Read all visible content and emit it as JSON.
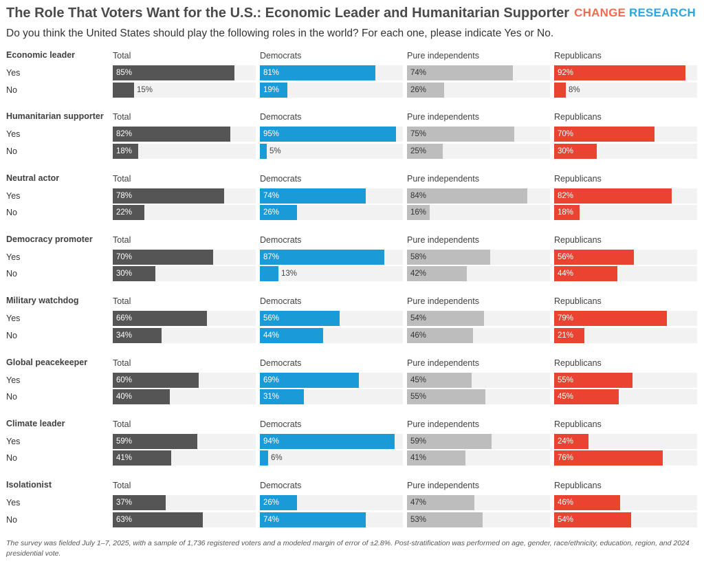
{
  "header": {
    "title": "The Role That Voters Want for the U.S.: Economic Leader and Humanitarian Supporter",
    "subtitle": "Do you think the United States should play the following roles in the world? For each one, please indicate Yes or No.",
    "logo_part1": "CHANGE",
    "logo_part2": "RESEARCH"
  },
  "colors": {
    "Total": "#555555",
    "Democrats": "#1a9bd7",
    "Pure independents": "#bdbdbd",
    "Republicans": "#ea4331",
    "logo_part1": "#f26b4e",
    "logo_part2": "#2ba6de",
    "track": "#f2f2f2"
  },
  "chart_data": {
    "type": "bar",
    "orientation": "horizontal",
    "xlim": [
      0,
      100
    ],
    "unit": "%",
    "groups": [
      "Total",
      "Democrats",
      "Pure independents",
      "Republicans"
    ],
    "responses": [
      "Yes",
      "No"
    ],
    "roles": [
      {
        "name": "Economic leader",
        "Total": [
          85,
          15
        ],
        "Democrats": [
          81,
          19
        ],
        "Pure independents": [
          74,
          26
        ],
        "Republicans": [
          92,
          8
        ]
      },
      {
        "name": "Humanitarian supporter",
        "Total": [
          82,
          18
        ],
        "Democrats": [
          95,
          5
        ],
        "Pure independents": [
          75,
          25
        ],
        "Republicans": [
          70,
          30
        ]
      },
      {
        "name": "Neutral actor",
        "Total": [
          78,
          22
        ],
        "Democrats": [
          74,
          26
        ],
        "Pure independents": [
          84,
          16
        ],
        "Republicans": [
          82,
          18
        ]
      },
      {
        "name": "Democracy promoter",
        "Total": [
          70,
          30
        ],
        "Democrats": [
          87,
          13
        ],
        "Pure independents": [
          58,
          42
        ],
        "Republicans": [
          56,
          44
        ]
      },
      {
        "name": "Military watchdog",
        "Total": [
          66,
          34
        ],
        "Democrats": [
          56,
          44
        ],
        "Pure independents": [
          54,
          46
        ],
        "Republicans": [
          79,
          21
        ]
      },
      {
        "name": "Global peacekeeper",
        "Total": [
          60,
          40
        ],
        "Democrats": [
          69,
          31
        ],
        "Pure independents": [
          45,
          55
        ],
        "Republicans": [
          55,
          45
        ]
      },
      {
        "name": "Climate leader",
        "Total": [
          59,
          41
        ],
        "Democrats": [
          94,
          6
        ],
        "Pure independents": [
          59,
          41
        ],
        "Republicans": [
          24,
          76
        ]
      },
      {
        "name": "Isolationist",
        "Total": [
          37,
          63
        ],
        "Democrats": [
          26,
          74
        ],
        "Pure independents": [
          47,
          53
        ],
        "Republicans": [
          46,
          54
        ]
      }
    ]
  },
  "footnote": "The survey was fielded July 1–7, 2025, with a sample of 1,736 registered voters and a modeled margin of error of ±2.8%. Post-stratification was performed on age, gender, race/ethnicity, education, region, and 2024 presidential vote."
}
